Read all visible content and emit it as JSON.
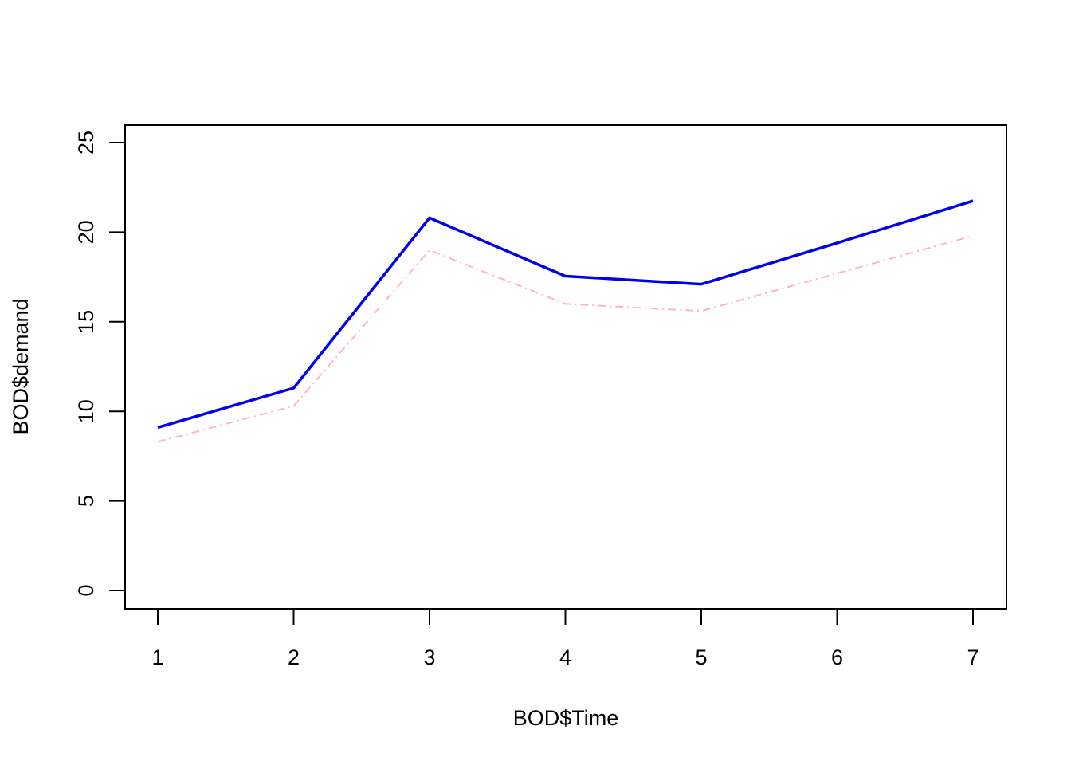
{
  "chart_data": {
    "type": "line",
    "title": "",
    "xlabel": "BOD$Time",
    "ylabel": "BOD$demand",
    "x": [
      1,
      2,
      3,
      4,
      5,
      6,
      7
    ],
    "xticks": [
      "1",
      "2",
      "3",
      "4",
      "5",
      "6",
      "7"
    ],
    "yticks": [
      "0",
      "5",
      "10",
      "15",
      "20",
      "25"
    ],
    "ylim": [
      0,
      25
    ],
    "xlim": [
      1,
      7
    ],
    "grid": false,
    "legend": "none",
    "series": [
      {
        "values": [
          9.1,
          11.3,
          20.8,
          17.55,
          17.1,
          19.4,
          21.75
        ],
        "color": "#0000EE",
        "line_style": "solid"
      },
      {
        "values": [
          8.3,
          10.3,
          19.0,
          16.0,
          15.6,
          17.7,
          19.8
        ],
        "color": "#FFB6C1",
        "line_style": "dashdot"
      }
    ]
  }
}
